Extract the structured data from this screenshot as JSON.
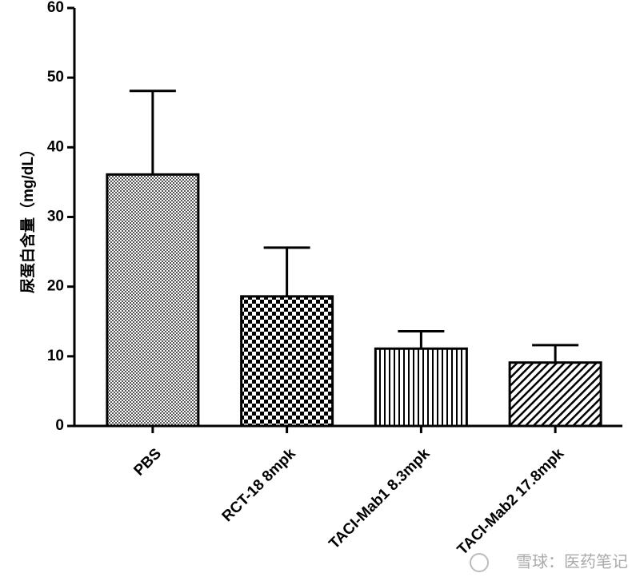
{
  "chart_data": {
    "type": "bar",
    "ylabel": "尿蛋白含量（mg/dL）",
    "categories": [
      "PBS",
      "RCT-18 8mpk",
      "TACI-Mab1 8.3mpk",
      "TACI-Mab2 17.8mpk"
    ],
    "values": [
      36.1,
      18.6,
      11.1,
      9.1
    ],
    "errors": [
      12.0,
      7.0,
      2.5,
      2.5
    ],
    "ylim": [
      0,
      60
    ],
    "yticks": [
      0,
      10,
      20,
      30,
      40,
      50,
      60
    ],
    "color": "#000000"
  },
  "watermark": "雪球：医药笔记"
}
